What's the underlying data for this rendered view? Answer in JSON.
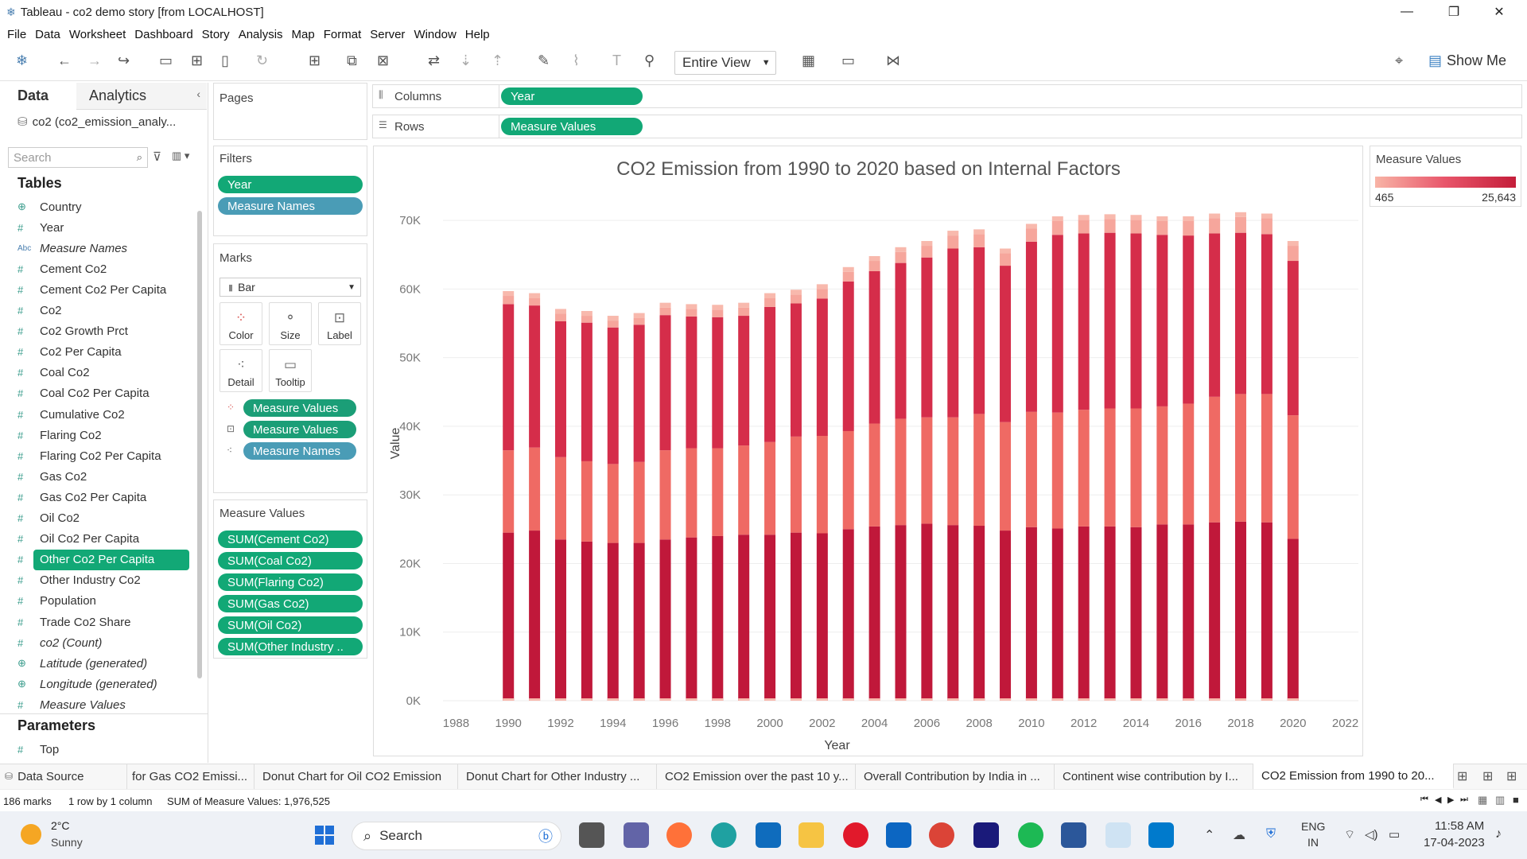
{
  "window": {
    "title": "Tableau - co2 demo story [from LOCALHOST]",
    "min": "—",
    "max": "❐",
    "close": "✕"
  },
  "menu": [
    "File",
    "Data",
    "Worksheet",
    "Dashboard",
    "Story",
    "Analysis",
    "Map",
    "Format",
    "Server",
    "Window",
    "Help"
  ],
  "toolbar": {
    "view_select": "Entire View",
    "show_me": "Show Me"
  },
  "datapane": {
    "tab_data": "Data",
    "tab_analytics": "Analytics",
    "datasource": "co2 (co2_emission_analy...",
    "search_placeholder": "Search",
    "tables_header": "Tables",
    "parameters_header": "Parameters",
    "fields": [
      {
        "icon": "⊕",
        "name": "Country",
        "italic": false
      },
      {
        "icon": "#",
        "name": "Year",
        "italic": false
      },
      {
        "icon": "Abc",
        "name": "Measure Names",
        "italic": true
      },
      {
        "icon": "#",
        "name": "Cement Co2",
        "italic": false
      },
      {
        "icon": "#",
        "name": "Cement Co2 Per Capita",
        "italic": false
      },
      {
        "icon": "#",
        "name": "Co2",
        "italic": false
      },
      {
        "icon": "#",
        "name": "Co2 Growth Prct",
        "italic": false
      },
      {
        "icon": "#",
        "name": "Co2 Per Capita",
        "italic": false
      },
      {
        "icon": "#",
        "name": "Coal Co2",
        "italic": false
      },
      {
        "icon": "#",
        "name": "Coal Co2 Per Capita",
        "italic": false
      },
      {
        "icon": "#",
        "name": "Cumulative Co2",
        "italic": false
      },
      {
        "icon": "#",
        "name": "Flaring Co2",
        "italic": false
      },
      {
        "icon": "#",
        "name": "Flaring Co2 Per Capita",
        "italic": false
      },
      {
        "icon": "#",
        "name": "Gas Co2",
        "italic": false
      },
      {
        "icon": "#",
        "name": "Gas Co2 Per Capita",
        "italic": false
      },
      {
        "icon": "#",
        "name": "Oil Co2",
        "italic": false
      },
      {
        "icon": "#",
        "name": "Oil Co2 Per Capita",
        "italic": false
      },
      {
        "icon": "#",
        "name": "Other Co2 Per Capita",
        "italic": false,
        "selected": true
      },
      {
        "icon": "#",
        "name": "Other Industry Co2",
        "italic": false
      },
      {
        "icon": "#",
        "name": "Population",
        "italic": false
      },
      {
        "icon": "#",
        "name": "Trade Co2 Share",
        "italic": false
      },
      {
        "icon": "#",
        "name": "co2 (Count)",
        "italic": true
      },
      {
        "icon": "⊕",
        "name": "Latitude (generated)",
        "italic": true
      },
      {
        "icon": "⊕",
        "name": "Longitude (generated)",
        "italic": true
      },
      {
        "icon": "#",
        "name": "Measure Values",
        "italic": true
      }
    ],
    "parameters": [
      {
        "icon": "#",
        "name": "Top"
      }
    ]
  },
  "shelves": {
    "pages": "Pages",
    "filters": "Filters",
    "filter_pills": [
      "Year",
      "Measure Names"
    ],
    "marks": "Marks",
    "mark_type": "Bar",
    "mark_buttons": {
      "color": "Color",
      "size": "Size",
      "label": "Label",
      "detail": "Detail",
      "tooltip": "Tooltip"
    },
    "mark_pills": [
      "Measure Values",
      "Measure Values",
      "Measure Names"
    ],
    "measure_values_title": "Measure Values",
    "measure_values_pills": [
      "SUM(Cement Co2)",
      "SUM(Coal Co2)",
      "SUM(Flaring Co2)",
      "SUM(Gas Co2)",
      "SUM(Oil Co2)",
      "SUM(Other Industry .."
    ],
    "columns_label": "Columns",
    "columns_pill": "Year",
    "rows_label": "Rows",
    "rows_pill": "Measure Values"
  },
  "legend": {
    "title": "Measure Values",
    "min": "465",
    "max": "25,643"
  },
  "chart_data": {
    "type": "bar",
    "title": "CO2 Emission from 1990 to 2020 based on Internal Factors",
    "xlabel": "Year",
    "ylabel": "Value",
    "ylim": [
      0,
      75000
    ],
    "yticks": [
      "0K",
      "10K",
      "20K",
      "30K",
      "40K",
      "50K",
      "60K",
      "70K"
    ],
    "xticks": [
      "1988",
      "1990",
      "1992",
      "1994",
      "1996",
      "1998",
      "2000",
      "2002",
      "2004",
      "2006",
      "2008",
      "2010",
      "2012",
      "2014",
      "2016",
      "2018",
      "2020",
      "2022"
    ],
    "grid": true,
    "x": [
      1990,
      1991,
      1992,
      1993,
      1994,
      1995,
      1996,
      1997,
      1998,
      1999,
      2000,
      2001,
      2002,
      2003,
      2004,
      2005,
      2006,
      2007,
      2008,
      2009,
      2010,
      2011,
      2012,
      2013,
      2014,
      2015,
      2016,
      2017,
      2018,
      2019,
      2020
    ],
    "series": [
      {
        "values": [
          24500,
          24800,
          23500,
          23200,
          23000,
          23000,
          23500,
          23800,
          24000,
          24200,
          24200,
          24500,
          24400,
          25000,
          25400,
          25600,
          25800,
          25600,
          25500,
          24800,
          25300,
          25100,
          25400,
          25400,
          25300,
          25700,
          25700,
          26000,
          26100,
          26000,
          23600
        ]
      },
      {
        "values": [
          12000,
          12100,
          12000,
          11700,
          11500,
          11800,
          13000,
          13000,
          12800,
          13000,
          13500,
          14000,
          14200,
          14300,
          15000,
          15500,
          15500,
          15700,
          16300,
          15800,
          16800,
          16900,
          17000,
          17200,
          17300,
          17200,
          17600,
          18300,
          18600,
          18700,
          18000
        ]
      },
      {
        "values": [
          21300,
          20700,
          19800,
          20200,
          19900,
          20000,
          19700,
          19200,
          19100,
          18900,
          19700,
          19400,
          20000,
          21800,
          22200,
          22700,
          23300,
          24600,
          24300,
          22800,
          24800,
          25900,
          25700,
          25600,
          25500,
          25000,
          24500,
          23800,
          23500,
          23300,
          22500
        ]
      },
      {
        "values": [
          1200,
          1100,
          1100,
          1000,
          1000,
          1000,
          1100,
          1100,
          1100,
          1200,
          1300,
          1300,
          1400,
          1400,
          1500,
          1600,
          1700,
          1900,
          1900,
          1800,
          1900,
          2000,
          2000,
          2000,
          2000,
          2000,
          2100,
          2200,
          2300,
          2300,
          2200
        ]
      },
      {
        "values": [
          700,
          700,
          700,
          700,
          700,
          700,
          700,
          700,
          700,
          700,
          700,
          700,
          700,
          700,
          700,
          700,
          700,
          700,
          700,
          700,
          700,
          700,
          700,
          700,
          700,
          700,
          700,
          700,
          700,
          700,
          700
        ]
      }
    ],
    "legend": "color ramp top-right"
  },
  "sheet_tabs": [
    "Data Source",
    " for Gas CO2 Emissi...",
    "Donut Chart for Oil CO2 Emission",
    "Donut  Chart for Other Industry ...",
    "CO2 Emission over the past 10 y...",
    "Overall Contribution by India in ...",
    "Continent wise contribution by I...",
    "CO2 Emission from 1990 to 20..."
  ],
  "status": {
    "marks": "186 marks",
    "rows": "1 row by 1 column",
    "sum": "SUM of Measure Values: 1,976,525"
  },
  "taskbar": {
    "temp": "2°C",
    "weather": "Sunny",
    "search": "Search",
    "lang1": "ENG",
    "lang2": "IN",
    "time": "11:58 AM",
    "date": "17-04-2023"
  }
}
